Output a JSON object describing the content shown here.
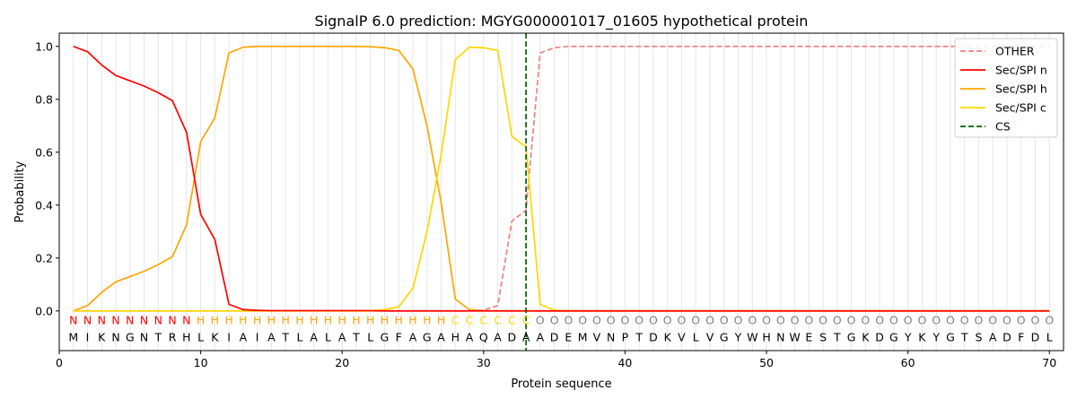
{
  "chart_data": {
    "type": "line",
    "title": "SignalP 6.0 prediction: MGYG000001017_01605 hypothetical protein",
    "xlabel": "Protein sequence",
    "ylabel": "Probability",
    "xlim": [
      0,
      71
    ],
    "ylim": [
      -0.15,
      1.05
    ],
    "xticks": [
      0,
      10,
      20,
      30,
      40,
      50,
      60,
      70
    ],
    "yticks": [
      0.0,
      0.2,
      0.4,
      0.6,
      0.8,
      1.0
    ],
    "ytick_labels": [
      "0.0",
      "0.2",
      "0.4",
      "0.6",
      "0.8",
      "1.0"
    ],
    "grid": "vertical lines at each residue",
    "legend_position": "top-right",
    "sequence": [
      "M",
      "I",
      "K",
      "N",
      "G",
      "N",
      "T",
      "R",
      "H",
      "L",
      "K",
      "I",
      "A",
      "I",
      "A",
      "T",
      "L",
      "A",
      "L",
      "A",
      "T",
      "L",
      "G",
      "F",
      "A",
      "G",
      "A",
      "H",
      "A",
      "Q",
      "A",
      "D",
      "A",
      "A",
      "D",
      "E",
      "M",
      "V",
      "N",
      "P",
      "T",
      "D",
      "K",
      "V",
      "L",
      "V",
      "G",
      "Y",
      "W",
      "H",
      "N",
      "W",
      "E",
      "S",
      "T",
      "G",
      "K",
      "D",
      "G",
      "Y",
      "K",
      "Y",
      "G",
      "T",
      "S",
      "A",
      "D",
      "F",
      "D",
      "L"
    ],
    "labels": [
      "N",
      "N",
      "N",
      "N",
      "N",
      "N",
      "N",
      "N",
      "N",
      "H",
      "H",
      "H",
      "H",
      "H",
      "H",
      "H",
      "H",
      "H",
      "H",
      "H",
      "H",
      "H",
      "H",
      "H",
      "H",
      "H",
      "H",
      "C",
      "C",
      "C",
      "C",
      "C",
      "C",
      "O",
      "O",
      "O",
      "O",
      "O",
      "O",
      "O",
      "O",
      "O",
      "O",
      "O",
      "O",
      "O",
      "O",
      "O",
      "O",
      "O",
      "O",
      "O",
      "O",
      "O",
      "O",
      "O",
      "O",
      "O",
      "O",
      "O",
      "O",
      "O",
      "O",
      "O",
      "O",
      "O",
      "O",
      "O",
      "O",
      "O"
    ],
    "label_colors": {
      "N": "#ff0000",
      "H": "#ffa500",
      "C": "#ffd700",
      "O": "#808080"
    },
    "cleavage_site": 33,
    "series": [
      {
        "name": "OTHER",
        "color": "#f08080",
        "style": "dashed",
        "values": [
          0,
          0,
          0,
          0,
          0,
          0,
          0,
          0,
          0,
          0,
          0,
          0,
          0,
          0,
          0,
          0,
          0,
          0,
          0,
          0,
          0,
          0,
          0,
          0,
          0,
          0,
          0,
          0,
          0,
          0.003,
          0.02,
          0.34,
          0.38,
          0.975,
          0.995,
          1,
          1,
          1,
          1,
          1,
          1,
          1,
          1,
          1,
          1,
          1,
          1,
          1,
          1,
          1,
          1,
          1,
          1,
          1,
          1,
          1,
          1,
          1,
          1,
          1,
          1,
          1,
          1,
          1,
          1,
          1,
          1,
          1,
          1,
          1
        ]
      },
      {
        "name": "Sec/SPI n",
        "color": "#ff0000",
        "style": "solid",
        "values": [
          1.0,
          0.98,
          0.93,
          0.89,
          0.87,
          0.85,
          0.825,
          0.795,
          0.675,
          0.365,
          0.27,
          0.025,
          0.005,
          0.002,
          0.001,
          0.001,
          0.001,
          0.001,
          0.001,
          0.001,
          0.001,
          0.001,
          0,
          0,
          0,
          0,
          0,
          0,
          0,
          0,
          0,
          0,
          0,
          0,
          0,
          0,
          0,
          0,
          0,
          0,
          0,
          0,
          0,
          0,
          0,
          0,
          0,
          0,
          0,
          0,
          0,
          0,
          0,
          0,
          0,
          0,
          0,
          0,
          0,
          0,
          0,
          0,
          0,
          0,
          0,
          0,
          0,
          0,
          0,
          0
        ]
      },
      {
        "name": "Sec/SPI h",
        "color": "#ffa500",
        "style": "solid",
        "values": [
          0.0,
          0.02,
          0.07,
          0.11,
          0.13,
          0.15,
          0.175,
          0.205,
          0.325,
          0.64,
          0.73,
          0.975,
          0.997,
          1.0,
          1.0,
          1.0,
          1.0,
          1.0,
          1.0,
          1.0,
          1.0,
          0.999,
          0.995,
          0.985,
          0.915,
          0.7,
          0.41,
          0.045,
          0.005,
          0.001,
          0,
          0,
          0,
          0,
          0,
          0,
          0,
          0,
          0,
          0,
          0,
          0,
          0,
          0,
          0,
          0,
          0,
          0,
          0,
          0,
          0,
          0,
          0,
          0,
          0,
          0,
          0,
          0,
          0,
          0,
          0,
          0,
          0,
          0,
          0,
          0,
          0,
          0,
          0,
          0
        ]
      },
      {
        "name": "Sec/SPI c",
        "color": "#ffd700",
        "style": "solid",
        "values": [
          0,
          0,
          0,
          0,
          0,
          0,
          0,
          0,
          0,
          0,
          0,
          0,
          0,
          0,
          0,
          0,
          0,
          0,
          0,
          0,
          0,
          0,
          0.005,
          0.015,
          0.085,
          0.3,
          0.59,
          0.95,
          0.997,
          0.995,
          0.985,
          0.66,
          0.62,
          0.025,
          0.003,
          0,
          0,
          0,
          0,
          0,
          0,
          0,
          0,
          0,
          0,
          0,
          0,
          0,
          0,
          0,
          0,
          0,
          0,
          0,
          0,
          0,
          0,
          0,
          0,
          0,
          0,
          0,
          0,
          0,
          0,
          0,
          0,
          0,
          0,
          0
        ]
      },
      {
        "name": "CS",
        "color": "#006400",
        "style": "dashed"
      }
    ]
  }
}
